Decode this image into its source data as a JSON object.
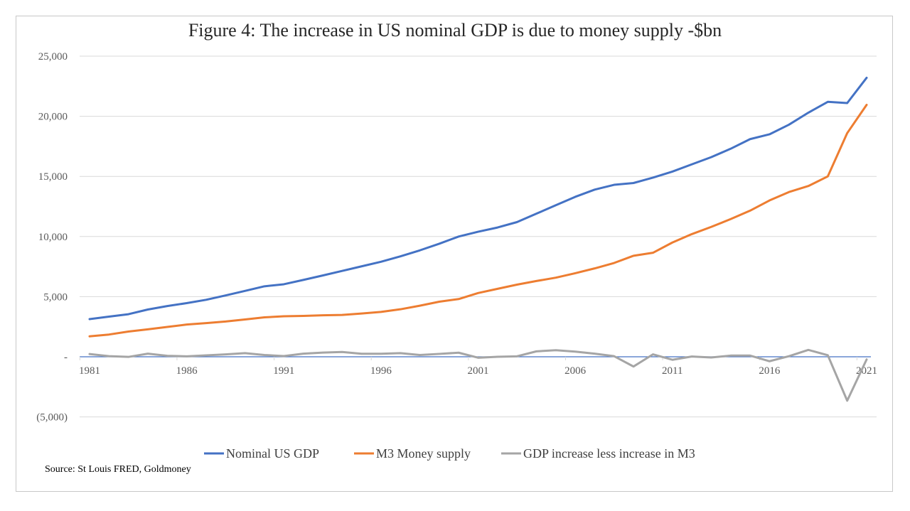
{
  "chart_data": {
    "type": "line",
    "title": "Figure 4: The increase in US nominal GDP is due to money supply -$bn",
    "xlabel": "",
    "ylabel": "",
    "ylim": [
      -5000,
      25000
    ],
    "yticks": [
      -5000,
      0,
      5000,
      10000,
      15000,
      20000,
      25000
    ],
    "ytick_labels": [
      "(5,000)",
      "-",
      "5,000",
      "10,000",
      "15,000",
      "20,000",
      "25,000"
    ],
    "xtick_labels": [
      "1981",
      "1986",
      "1991",
      "1996",
      "2001",
      "2006",
      "2011",
      "2016",
      "2021"
    ],
    "grid": true,
    "legend": "bottom",
    "x": [
      1981,
      1982,
      1983,
      1984,
      1985,
      1986,
      1987,
      1988,
      1989,
      1990,
      1991,
      1992,
      1993,
      1994,
      1995,
      1996,
      1997,
      1998,
      1999,
      2000,
      2001,
      2002,
      2003,
      2004,
      2005,
      2006,
      2007,
      2008,
      2009,
      2010,
      2011,
      2012,
      2013,
      2014,
      2015,
      2016,
      2017,
      2018,
      2019,
      2020,
      2021
    ],
    "series": [
      {
        "name": "Nominal US GDP",
        "color": "#4472c4",
        "values": [
          3130,
          3340,
          3540,
          3930,
          4220,
          4460,
          4740,
          5100,
          5480,
          5860,
          6030,
          6390,
          6760,
          7140,
          7520,
          7900,
          8350,
          8850,
          9400,
          10000,
          10400,
          10750,
          11200,
          11900,
          12600,
          13300,
          13900,
          14300,
          14450,
          14900,
          15400,
          16000,
          16600,
          17300,
          18100,
          18500,
          19300,
          20300,
          21200,
          21100,
          23200
        ]
      },
      {
        "name": "M3 Money supply",
        "color": "#ed7d31",
        "values": [
          1700,
          1850,
          2100,
          2280,
          2480,
          2680,
          2800,
          2930,
          3100,
          3280,
          3370,
          3400,
          3450,
          3480,
          3600,
          3730,
          3950,
          4250,
          4580,
          4800,
          5300,
          5650,
          6000,
          6300,
          6580,
          6950,
          7350,
          7800,
          8400,
          8650,
          9500,
          10200,
          10800,
          11450,
          12150,
          13000,
          13700,
          14200,
          15000,
          18600,
          20950
        ]
      },
      {
        "name": "GDP increase less increase in M3",
        "color": "#a5a5a5",
        "values": [
          230,
          50,
          -10,
          260,
          80,
          40,
          120,
          200,
          300,
          150,
          60,
          260,
          350,
          400,
          250,
          250,
          300,
          150,
          240,
          340,
          -80,
          0,
          40,
          450,
          550,
          430,
          260,
          50,
          -810,
          200,
          -250,
          20,
          -60,
          100,
          100,
          -370,
          50,
          570,
          130,
          -3650,
          -220
        ]
      }
    ]
  },
  "source": "Source: St Louis FRED, Goldmoney"
}
